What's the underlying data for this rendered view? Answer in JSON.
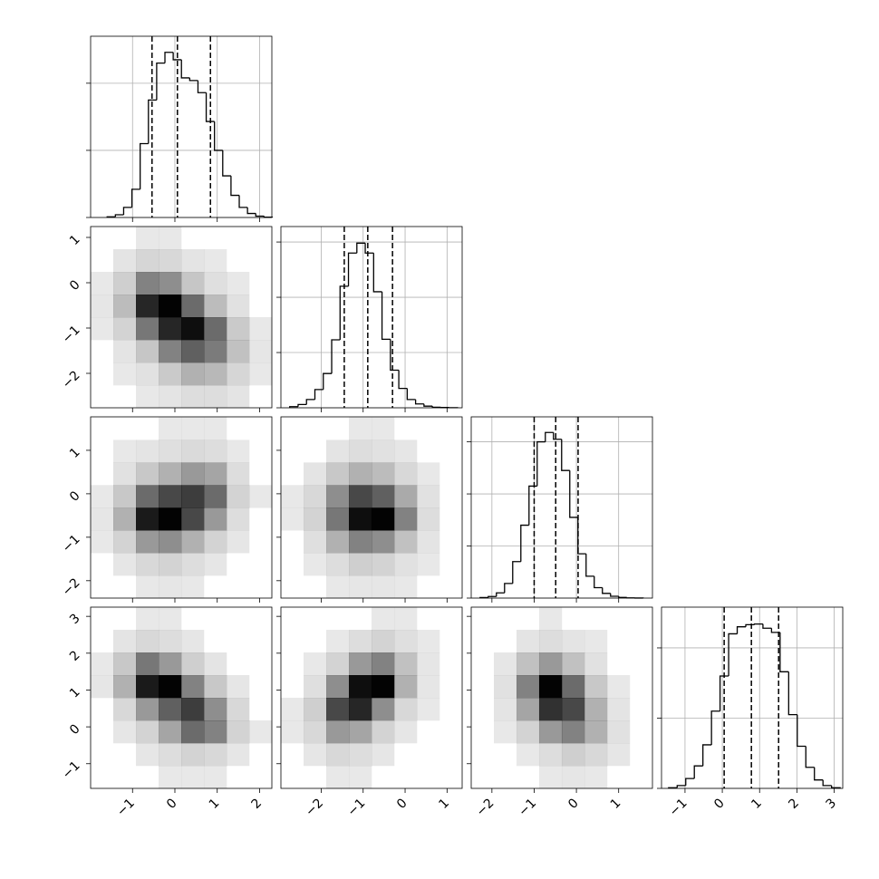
{
  "chart_data": [
    {
      "type": "histogram",
      "xlim": [
        -1.99,
        2.29
      ],
      "ylim": [
        0,
        2700
      ],
      "xticks": [
        {
          "value": -1,
          "label": "−1"
        },
        0,
        1,
        2
      ],
      "yticks": [
        0,
        1000,
        2000
      ],
      "bins": [
        -1.6,
        -1.405,
        -1.21,
        -1.015,
        -0.82,
        -0.625,
        -0.43,
        -0.235,
        -0.04,
        0.155,
        0.35,
        0.545,
        0.74,
        0.935,
        1.13,
        1.325,
        1.52,
        1.715,
        1.91,
        2.105,
        2.3
      ],
      "counts": [
        10,
        40,
        150,
        420,
        1100,
        1750,
        2300,
        2460,
        2350,
        2080,
        2040,
        1860,
        1430,
        1000,
        620,
        330,
        150,
        60,
        20,
        5
      ],
      "quantiles": [
        -0.54,
        0.06,
        0.84
      ],
      "grid": true,
      "color": "#000000"
    },
    {
      "type": "hist2d",
      "xlim": [
        -1.99,
        2.29
      ],
      "ylim": [
        -2.76,
        1.24
      ],
      "xticks": [
        {
          "value": -1,
          "label": "−1"
        },
        0,
        1,
        2
      ],
      "yticks": [
        {
          "value": -2,
          "label": "−2"
        },
        {
          "value": -1,
          "label": "−1"
        },
        0,
        1
      ],
      "xbins": [
        -1.99,
        -1.455,
        -0.92,
        -0.385,
        0.15,
        0.685,
        1.22,
        1.755,
        2.29
      ],
      "ybins": [
        -2.76,
        -2.26,
        -1.76,
        -1.26,
        -0.76,
        -0.26,
        0.24,
        0.74,
        1.24
      ],
      "counts": [
        [
          0,
          0,
          1,
          3,
          6,
          6,
          3,
          0
        ],
        [
          0,
          1,
          4,
          14,
          25,
          22,
          9,
          1
        ],
        [
          0,
          3,
          16,
          45,
          60,
          48,
          18,
          2
        ],
        [
          1,
          10,
          50,
          85,
          95,
          55,
          14,
          1
        ],
        [
          2,
          20,
          85,
          100,
          55,
          20,
          4,
          0
        ],
        [
          1,
          12,
          45,
          40,
          16,
          5,
          1,
          0
        ],
        [
          0,
          3,
          9,
          8,
          3,
          1,
          0,
          0
        ],
        [
          0,
          0,
          1,
          1,
          0,
          0,
          0,
          0
        ]
      ],
      "color": "#000000"
    },
    {
      "type": "histogram",
      "xlim": [
        -2.96,
        1.36
      ],
      "ylim": [
        0,
        3280
      ],
      "xticks": [
        {
          "value": -2,
          "label": "−2"
        },
        {
          "value": -1,
          "label": "−1"
        },
        0,
        1
      ],
      "yticks": [
        0,
        1000,
        2000,
        3000
      ],
      "bins": [
        -2.75,
        -2.55,
        -2.35,
        -2.15,
        -1.95,
        -1.75,
        -1.55,
        -1.35,
        -1.15,
        -0.95,
        -0.75,
        -0.55,
        -0.35,
        -0.15,
        0.05,
        0.25,
        0.45,
        0.65,
        0.85,
        1.05,
        1.25
      ],
      "counts": [
        20,
        60,
        150,
        330,
        620,
        1230,
        2200,
        2800,
        2980,
        2800,
        2100,
        1240,
        680,
        350,
        150,
        70,
        30,
        10,
        5,
        2
      ],
      "quantiles": [
        -1.45,
        -0.89,
        -0.3
      ],
      "grid": true,
      "color": "#000000"
    },
    {
      "type": "hist2d",
      "xlim": [
        -1.99,
        2.29
      ],
      "ylim": [
        -2.4,
        1.77
      ],
      "xticks": [
        {
          "value": -1,
          "label": "−1"
        },
        0,
        1,
        2
      ],
      "yticks": [
        {
          "value": -2,
          "label": "−2"
        },
        {
          "value": -1,
          "label": "−1"
        },
        0,
        1
      ],
      "xbins": [
        -1.99,
        -1.455,
        -0.92,
        -0.385,
        0.15,
        0.685,
        1.22,
        1.755,
        2.29
      ],
      "ybins": [
        -2.4,
        -1.88,
        -1.36,
        -0.84,
        -0.32,
        0.2,
        0.72,
        1.24,
        1.76
      ],
      "counts": [
        [
          0,
          0,
          1,
          2,
          1,
          0,
          0,
          0
        ],
        [
          0,
          2,
          8,
          10,
          6,
          2,
          0,
          0
        ],
        [
          1,
          10,
          35,
          40,
          25,
          10,
          2,
          0
        ],
        [
          2,
          25,
          90,
          100,
          70,
          35,
          6,
          0
        ],
        [
          1,
          15,
          55,
          70,
          75,
          55,
          10,
          1
        ],
        [
          0,
          4,
          15,
          25,
          35,
          30,
          6,
          0
        ],
        [
          0,
          1,
          3,
          5,
          7,
          6,
          1,
          0
        ],
        [
          0,
          0,
          0,
          1,
          1,
          1,
          0,
          0
        ]
      ],
      "color": "#000000"
    },
    {
      "type": "hist2d",
      "xlim": [
        -2.96,
        1.36
      ],
      "ylim": [
        -2.4,
        1.77
      ],
      "xticks": [
        {
          "value": -2,
          "label": "−2"
        },
        {
          "value": -1,
          "label": "−1"
        },
        0,
        1
      ],
      "yticks": [
        {
          "value": -2,
          "label": "−2"
        },
        {
          "value": -1,
          "label": "−1"
        },
        0,
        1
      ],
      "xbins": [
        -2.96,
        -2.42,
        -1.88,
        -1.34,
        -0.8,
        -0.26,
        0.28,
        0.82,
        1.36
      ],
      "ybins": [
        -2.4,
        -1.88,
        -1.36,
        -0.84,
        -0.32,
        0.2,
        0.72,
        1.24,
        1.76
      ],
      "counts": [
        [
          0,
          0,
          1,
          2,
          2,
          1,
          0,
          0
        ],
        [
          0,
          1,
          6,
          12,
          10,
          4,
          1,
          0
        ],
        [
          0,
          5,
          25,
          45,
          40,
          18,
          3,
          0
        ],
        [
          1,
          10,
          50,
          95,
          100,
          45,
          6,
          0
        ],
        [
          1,
          8,
          40,
          70,
          60,
          28,
          4,
          0
        ],
        [
          0,
          3,
          15,
          25,
          20,
          8,
          1,
          0
        ],
        [
          0,
          0,
          3,
          6,
          4,
          2,
          0,
          0
        ],
        [
          0,
          0,
          0,
          1,
          1,
          0,
          0,
          0
        ]
      ],
      "color": "#000000"
    },
    {
      "type": "histogram",
      "xlim": [
        -2.49,
        1.8
      ],
      "ylim": [
        0,
        3480
      ],
      "xticks": [
        {
          "value": -2,
          "label": "−2"
        },
        {
          "value": -1,
          "label": "−1"
        },
        0,
        1
      ],
      "yticks": [
        0,
        1000,
        2000,
        3000
      ],
      "bins": [
        -2.28,
        -2.087,
        -1.894,
        -1.701,
        -1.508,
        -1.315,
        -1.122,
        -0.929,
        -0.736,
        -0.543,
        -0.35,
        -0.157,
        0.036,
        0.229,
        0.422,
        0.615,
        0.808,
        1.001,
        1.194,
        1.387,
        1.58
      ],
      "counts": [
        10,
        30,
        100,
        280,
        700,
        1400,
        2150,
        3000,
        3180,
        3050,
        2450,
        1550,
        850,
        420,
        200,
        90,
        35,
        12,
        4,
        1
      ],
      "quantiles": [
        -1.0,
        -0.49,
        0.04
      ],
      "grid": true,
      "color": "#000000"
    },
    {
      "type": "hist2d",
      "xlim": [
        -1.99,
        2.29
      ],
      "ylim": [
        -1.67,
        3.25
      ],
      "xticks": [
        {
          "value": -1,
          "label": "−1"
        },
        0,
        1,
        2
      ],
      "yticks": [
        {
          "value": -1,
          "label": "−1"
        },
        0,
        1,
        2,
        3
      ],
      "xbins": [
        -1.99,
        -1.455,
        -0.92,
        -0.385,
        0.15,
        0.685,
        1.22,
        1.755,
        2.29
      ],
      "ybins": [
        -1.67,
        -1.055,
        -0.44,
        0.175,
        0.79,
        1.405,
        2.02,
        2.635,
        3.25
      ],
      "counts": [
        [
          0,
          0,
          0,
          1,
          1,
          1,
          0,
          0
        ],
        [
          0,
          0,
          2,
          6,
          10,
          8,
          2,
          0
        ],
        [
          0,
          2,
          10,
          30,
          55,
          45,
          10,
          1
        ],
        [
          0,
          8,
          35,
          60,
          75,
          40,
          8,
          0
        ],
        [
          2,
          25,
          90,
          100,
          45,
          15,
          2,
          0
        ],
        [
          1,
          15,
          50,
          35,
          12,
          3,
          0,
          0
        ],
        [
          0,
          3,
          8,
          6,
          2,
          0,
          0,
          0
        ],
        [
          0,
          0,
          1,
          1,
          0,
          0,
          0,
          0
        ]
      ],
      "color": "#000000"
    },
    {
      "type": "hist2d",
      "xlim": [
        -2.96,
        1.36
      ],
      "ylim": [
        -1.67,
        3.25
      ],
      "xticks": [
        {
          "value": -2,
          "label": "−2"
        },
        {
          "value": -1,
          "label": "−1"
        },
        0,
        1
      ],
      "yticks": [
        {
          "value": -1,
          "label": "−1"
        },
        0,
        1,
        2,
        3
      ],
      "xbins": [
        -2.96,
        -2.42,
        -1.88,
        -1.34,
        -0.8,
        -0.26,
        0.28,
        0.82,
        1.36
      ],
      "ybins": [
        -1.67,
        -1.055,
        -0.44,
        0.175,
        0.79,
        1.405,
        2.02,
        2.635,
        3.25
      ],
      "counts": [
        [
          0,
          0,
          1,
          1,
          0,
          0,
          0,
          0
        ],
        [
          0,
          2,
          8,
          6,
          2,
          0,
          0,
          0
        ],
        [
          1,
          8,
          35,
          30,
          10,
          2,
          0,
          0
        ],
        [
          1,
          12,
          70,
          85,
          40,
          8,
          1,
          0
        ],
        [
          0,
          5,
          40,
          95,
          100,
          25,
          2,
          0
        ],
        [
          0,
          1,
          10,
          35,
          45,
          18,
          2,
          0
        ],
        [
          0,
          0,
          1,
          6,
          10,
          5,
          1,
          0
        ],
        [
          0,
          0,
          0,
          0,
          1,
          1,
          0,
          0
        ]
      ],
      "color": "#000000"
    },
    {
      "type": "hist2d",
      "xlim": [
        -2.49,
        1.8
      ],
      "ylim": [
        -1.67,
        3.25
      ],
      "xticks": [
        {
          "value": -2,
          "label": "−2"
        },
        {
          "value": -1,
          "label": "−1"
        },
        0,
        1
      ],
      "yticks": [
        {
          "value": -1,
          "label": "−1"
        },
        0,
        1,
        2,
        3
      ],
      "xbins": [
        -2.49,
        -1.954,
        -1.418,
        -0.882,
        -0.346,
        0.19,
        0.726,
        1.262,
        1.8
      ],
      "ybins": [
        -1.67,
        -1.055,
        -0.44,
        0.175,
        0.79,
        1.405,
        2.02,
        2.635,
        3.25
      ],
      "counts": [
        [
          0,
          0,
          0,
          1,
          2,
          1,
          0,
          0
        ],
        [
          0,
          0,
          1,
          6,
          12,
          8,
          2,
          0
        ],
        [
          0,
          1,
          10,
          35,
          45,
          25,
          4,
          0
        ],
        [
          0,
          3,
          30,
          80,
          70,
          25,
          3,
          0
        ],
        [
          0,
          4,
          45,
          100,
          55,
          15,
          1,
          0
        ],
        [
          0,
          2,
          18,
          35,
          18,
          4,
          0,
          0
        ],
        [
          0,
          0,
          3,
          6,
          3,
          1,
          0,
          0
        ],
        [
          0,
          0,
          0,
          1,
          0,
          0,
          0,
          0
        ]
      ],
      "color": "#000000"
    },
    {
      "type": "histogram",
      "xlim": [
        -1.63,
        3.23
      ],
      "ylim": [
        0,
        2580
      ],
      "xticks": [
        {
          "value": -1,
          "label": "−1"
        },
        0,
        1,
        2,
        3
      ],
      "yticks": [
        0,
        1000,
        2000
      ],
      "bins": [
        -1.44,
        -1.21,
        -0.98,
        -0.75,
        -0.52,
        -0.29,
        -0.06,
        0.17,
        0.4,
        0.63,
        0.86,
        1.09,
        1.32,
        1.55,
        1.78,
        2.01,
        2.24,
        2.47,
        2.7,
        2.93,
        3.16
      ],
      "counts": [
        10,
        40,
        140,
        320,
        620,
        1100,
        1600,
        2200,
        2300,
        2330,
        2340,
        2280,
        2220,
        1660,
        1050,
        600,
        300,
        120,
        40,
        10
      ],
      "quantiles": [
        0.05,
        0.78,
        1.51
      ],
      "grid": true,
      "color": "#000000"
    }
  ]
}
